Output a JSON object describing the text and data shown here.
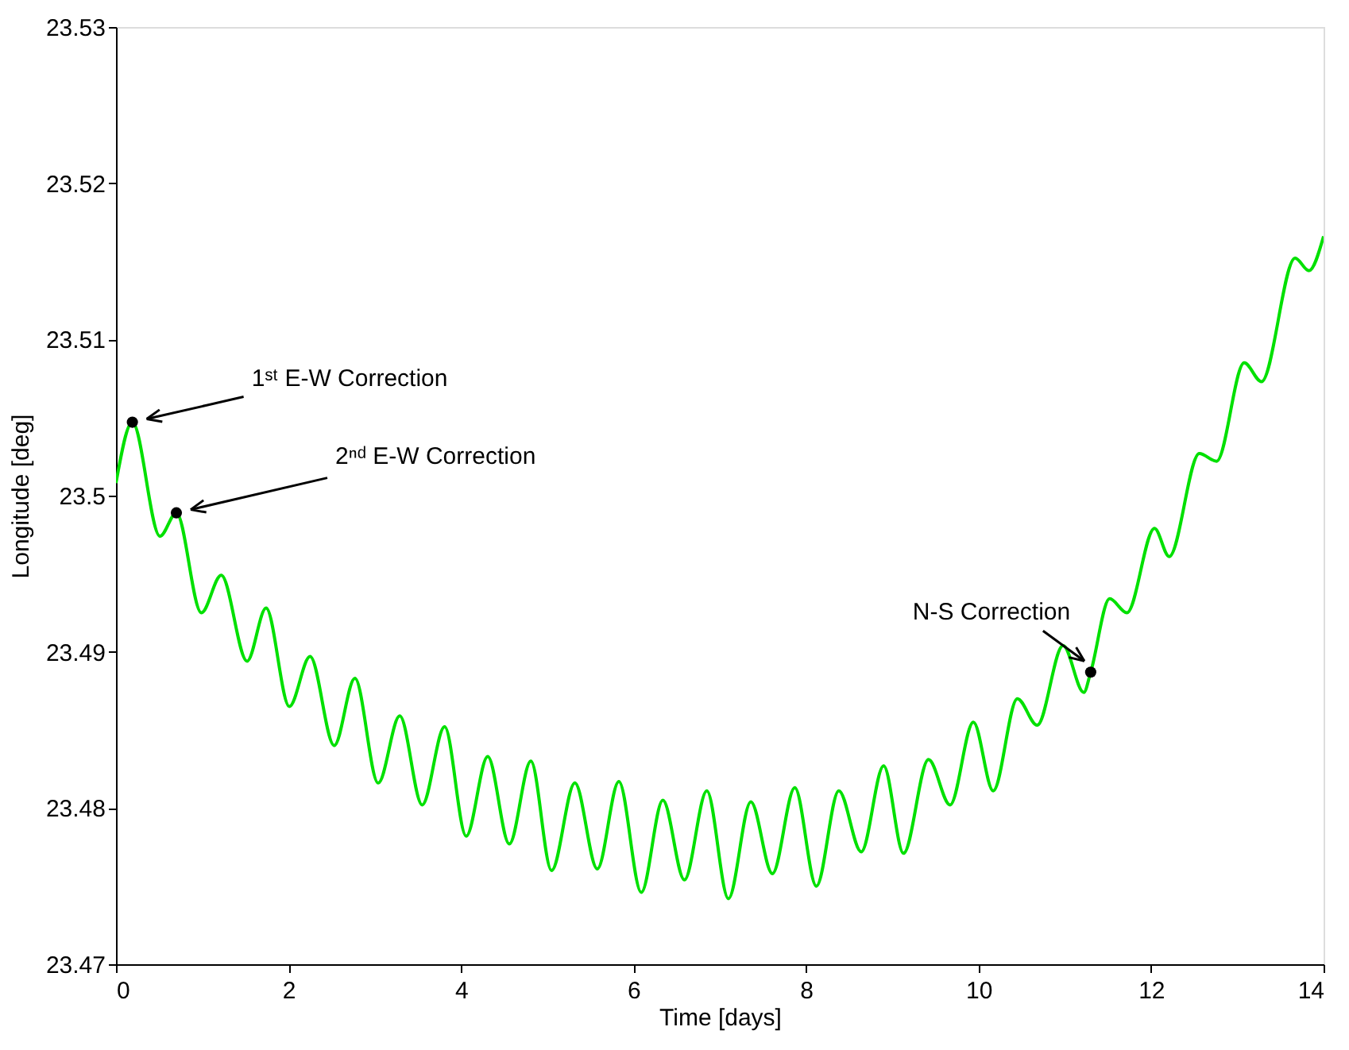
{
  "chart_data": {
    "type": "line",
    "xlabel": "Time [days]",
    "ylabel": "Longitude [deg]",
    "xlim": [
      0,
      14
    ],
    "ylim": [
      23.47,
      23.53
    ],
    "xticks": [
      0,
      2,
      4,
      6,
      8,
      10,
      12,
      14
    ],
    "yticks": [
      23.47,
      23.48,
      23.49,
      23.5,
      23.51,
      23.52,
      23.53
    ],
    "grid": false,
    "series": [
      {
        "color": "#00e000",
        "marker": "none",
        "x": [
          0,
          0.19,
          0.51,
          0.7,
          0.99,
          1.22,
          1.52,
          1.74,
          2.01,
          2.25,
          2.53,
          2.77,
          3.04,
          3.29,
          3.55,
          3.81,
          4.06,
          4.31,
          4.56,
          4.81,
          5.05,
          5.32,
          5.58,
          5.83,
          6.09,
          6.34,
          6.59,
          6.85,
          7.1,
          7.36,
          7.61,
          7.87,
          8.12,
          8.38,
          8.64,
          8.9,
          9.13,
          9.42,
          9.67,
          9.94,
          10.17,
          10.45,
          10.68,
          10.98,
          11.22,
          11.3,
          11.52,
          11.72,
          12.04,
          12.21,
          12.56,
          12.76,
          13.08,
          13.28,
          13.67,
          13.83,
          14
        ],
        "values": [
          23.5008,
          23.5047,
          23.4974,
          23.4989,
          23.4925,
          23.4949,
          23.4894,
          23.4928,
          23.4865,
          23.4897,
          23.484,
          23.4883,
          23.4816,
          23.4859,
          23.4802,
          23.4852,
          23.4782,
          23.4833,
          23.4777,
          23.483,
          23.476,
          23.4816,
          23.4761,
          23.4817,
          23.4746,
          23.4805,
          23.4754,
          23.4811,
          23.4742,
          23.4804,
          23.4758,
          23.4813,
          23.475,
          23.4811,
          23.4772,
          23.4827,
          23.4771,
          23.4831,
          23.4802,
          23.4855,
          23.4811,
          23.487,
          23.4853,
          23.4904,
          23.4874,
          23.4887,
          23.4934,
          23.4925,
          23.4979,
          23.4961,
          23.5027,
          23.5022,
          23.5085,
          23.5073,
          23.5152,
          23.5144,
          23.5166
        ]
      },
      {
        "type": "scatter",
        "color": "#000000",
        "marker": "circle",
        "x": [
          0.19,
          0.7,
          11.3
        ],
        "values": [
          23.5047,
          23.4989,
          23.4887
        ]
      }
    ],
    "annotations": [
      {
        "text": "1ˢᵗ E-W Correction",
        "x": 0.19,
        "y": 23.5047
      },
      {
        "text": "2ⁿᵈ E-W Correction",
        "x": 0.7,
        "y": 23.4989
      },
      {
        "text": "N-S Correction",
        "x": 11.3,
        "y": 23.4887
      }
    ]
  }
}
